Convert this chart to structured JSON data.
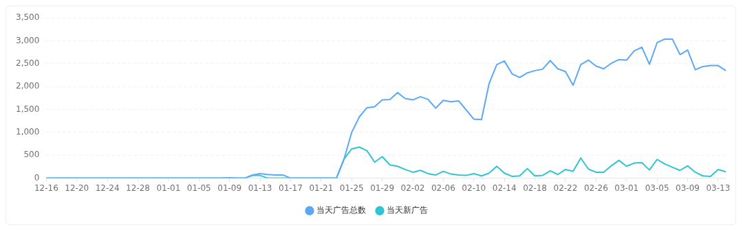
{
  "chart_data": {
    "type": "line",
    "categories": [
      "12-16",
      null,
      null,
      null,
      "12-20",
      null,
      null,
      null,
      "12-24",
      null,
      null,
      null,
      "12-28",
      null,
      null,
      null,
      "01-01",
      null,
      null,
      null,
      "01-05",
      null,
      null,
      null,
      "01-09",
      null,
      null,
      null,
      "01-13",
      null,
      null,
      null,
      "01-17",
      null,
      null,
      null,
      "01-21",
      null,
      null,
      null,
      "01-25",
      null,
      null,
      null,
      "01-29",
      null,
      null,
      null,
      "02-02",
      null,
      null,
      null,
      "02-06",
      null,
      null,
      null,
      "02-10",
      null,
      null,
      null,
      "02-14",
      null,
      null,
      null,
      "02-18",
      null,
      null,
      null,
      "02-22",
      null,
      null,
      null,
      "02-26",
      null,
      null,
      null,
      "03-01",
      null,
      null,
      null,
      "03-05",
      null,
      null,
      null,
      "03-09",
      null,
      null,
      null,
      "03-13",
      null
    ],
    "series": [
      {
        "name": "当天广告总数",
        "color": "#5aa9f7",
        "values": [
          0,
          0,
          0,
          0,
          0,
          0,
          0,
          0,
          0,
          0,
          0,
          0,
          0,
          0,
          0,
          0,
          0,
          0,
          0,
          0,
          0,
          0,
          0,
          0,
          10,
          0,
          0,
          70,
          100,
          80,
          70,
          70,
          0,
          0,
          0,
          0,
          0,
          0,
          0,
          420,
          1000,
          1340,
          1540,
          1560,
          1710,
          1720,
          1870,
          1740,
          1710,
          1780,
          1720,
          1530,
          1700,
          1670,
          1690,
          1490,
          1290,
          1280,
          2070,
          2480,
          2560,
          2280,
          2200,
          2300,
          2350,
          2380,
          2570,
          2390,
          2330,
          2030,
          2480,
          2580,
          2450,
          2390,
          2510,
          2590,
          2580,
          2780,
          2860,
          2490,
          2960,
          3040,
          3040,
          2700,
          2800,
          2370,
          2440,
          2460,
          2460,
          2350
        ]
      },
      {
        "name": "当天新广告",
        "color": "#2ec4d4",
        "values": [
          0,
          0,
          0,
          0,
          0,
          0,
          0,
          0,
          0,
          0,
          0,
          0,
          0,
          0,
          0,
          0,
          0,
          0,
          0,
          0,
          0,
          0,
          0,
          0,
          10,
          0,
          0,
          60,
          60,
          0,
          0,
          0,
          0,
          0,
          0,
          0,
          0,
          0,
          0,
          420,
          640,
          680,
          600,
          350,
          470,
          290,
          260,
          190,
          130,
          170,
          100,
          70,
          150,
          90,
          70,
          60,
          100,
          50,
          110,
          260,
          110,
          40,
          50,
          210,
          50,
          60,
          160,
          80,
          190,
          150,
          440,
          200,
          130,
          130,
          270,
          390,
          260,
          330,
          340,
          180,
          410,
          310,
          240,
          170,
          270,
          130,
          50,
          40,
          190,
          140
        ]
      }
    ],
    "ylim": [
      0,
      3500
    ],
    "yticks": [
      0,
      500,
      {
        "value": 1000,
        "label": "1,000"
      },
      {
        "value": 1500,
        "label": "1,500"
      },
      {
        "value": 2000,
        "label": "2,000"
      },
      {
        "value": 2500,
        "label": "2,500"
      },
      {
        "value": 3000,
        "label": "3,000"
      },
      {
        "value": 3500,
        "label": "3,500"
      }
    ],
    "grid": "y",
    "legend": "bottom",
    "marker": "none",
    "line_style": "solid"
  }
}
